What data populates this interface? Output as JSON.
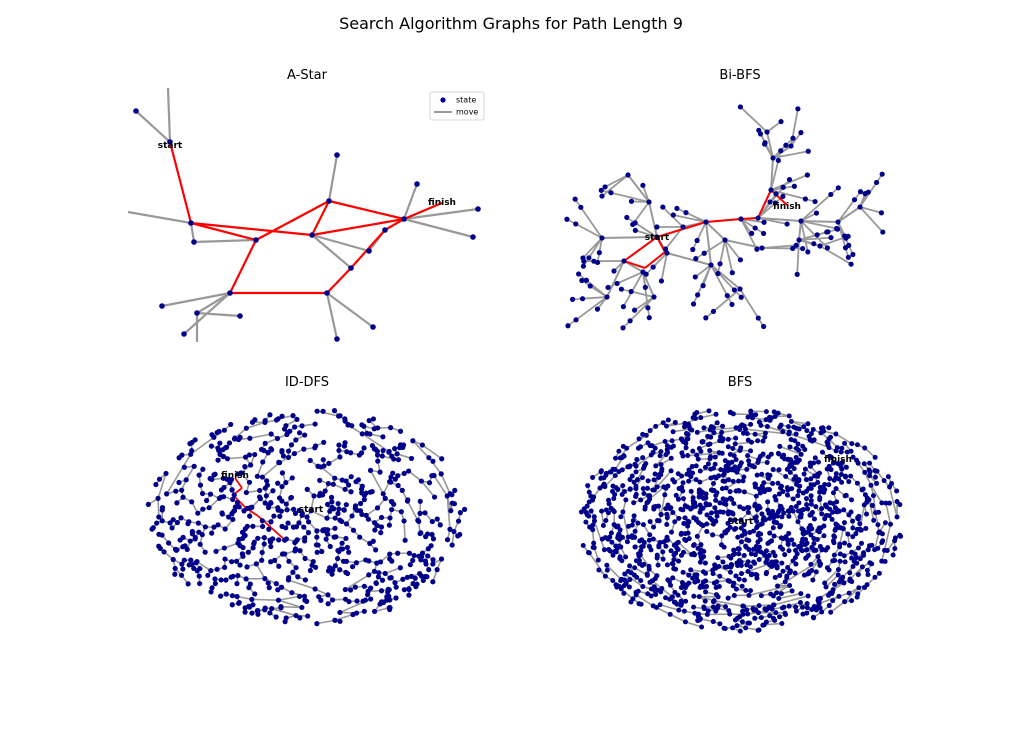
{
  "figure": {
    "title": "Search Algorithm Graphs for Path Length 9"
  },
  "colors": {
    "node": "#00008b",
    "edge": "#999999",
    "path": "#ff0000",
    "label": "#000000"
  },
  "chart_data": [
    {
      "type": "network",
      "title": "A-Star",
      "legend": {
        "entries": [
          {
            "label": "state",
            "kind": "point"
          },
          {
            "label": "move",
            "kind": "line"
          }
        ],
        "placement": "top-right"
      },
      "node_labels": [
        "start",
        "finish"
      ],
      "highlighted_path_edges": 13
    },
    {
      "type": "network",
      "title": "Bi-BFS",
      "node_labels": [
        "start",
        "finish"
      ]
    },
    {
      "type": "network",
      "title": "ID-DFS",
      "node_labels": [
        "start",
        "finish"
      ]
    },
    {
      "type": "network",
      "title": "BFS",
      "node_labels": [
        "start",
        "finish"
      ]
    }
  ]
}
